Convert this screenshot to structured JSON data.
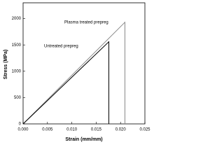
{
  "chart_data": {
    "type": "line",
    "x_label": "Strain (mm/mm)",
    "y_label": "Stress (MPa)",
    "xlim": [
      0,
      0.025
    ],
    "ylim": [
      0,
      2300
    ],
    "xticks": [
      {
        "value": 0,
        "label": "0.000"
      },
      0.005,
      {
        "value": 0.01,
        "label": "0.010"
      },
      0.015,
      {
        "value": 0.02,
        "label": "0.020"
      },
      0.025
    ],
    "yticks": [
      0,
      500,
      1000,
      1500,
      2000
    ],
    "series": [
      {
        "name": "Plasma treated prepreg",
        "color": "#888888",
        "x": [
          0,
          0.0209,
          0.0209
        ],
        "values": [
          0,
          1930,
          0
        ]
      },
      {
        "name": "Untreated prepreg",
        "color": "#000000",
        "x": [
          0,
          0.0176,
          0.0176
        ],
        "values": [
          0,
          1560,
          0
        ]
      }
    ]
  }
}
